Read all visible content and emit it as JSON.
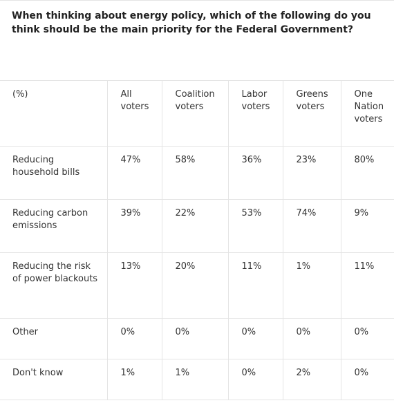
{
  "title": "When thinking about energy policy, which of the following do you think should be the main priority for the Federal Government?",
  "table": {
    "header": [
      "(%)",
      "All voters",
      "Coalition voters",
      "Labor voters",
      "Greens voters",
      "One Nation voters"
    ],
    "rows": [
      {
        "label": "Reducing household bills",
        "values": [
          "47%",
          "58%",
          "36%",
          "23%",
          "80%"
        ]
      },
      {
        "label": "Reducing carbon emissions",
        "values": [
          "39%",
          "22%",
          "53%",
          "74%",
          "9%"
        ]
      },
      {
        "label": "Reducing the risk of power blackouts",
        "values": [
          "13%",
          "20%",
          "11%",
          "1%",
          "11%"
        ]
      },
      {
        "label": "Other",
        "values": [
          "0%",
          "0%",
          "0%",
          "0%",
          "0%"
        ]
      },
      {
        "label": "Don't know",
        "values": [
          "1%",
          "1%",
          "0%",
          "2%",
          "0%"
        ]
      }
    ]
  }
}
